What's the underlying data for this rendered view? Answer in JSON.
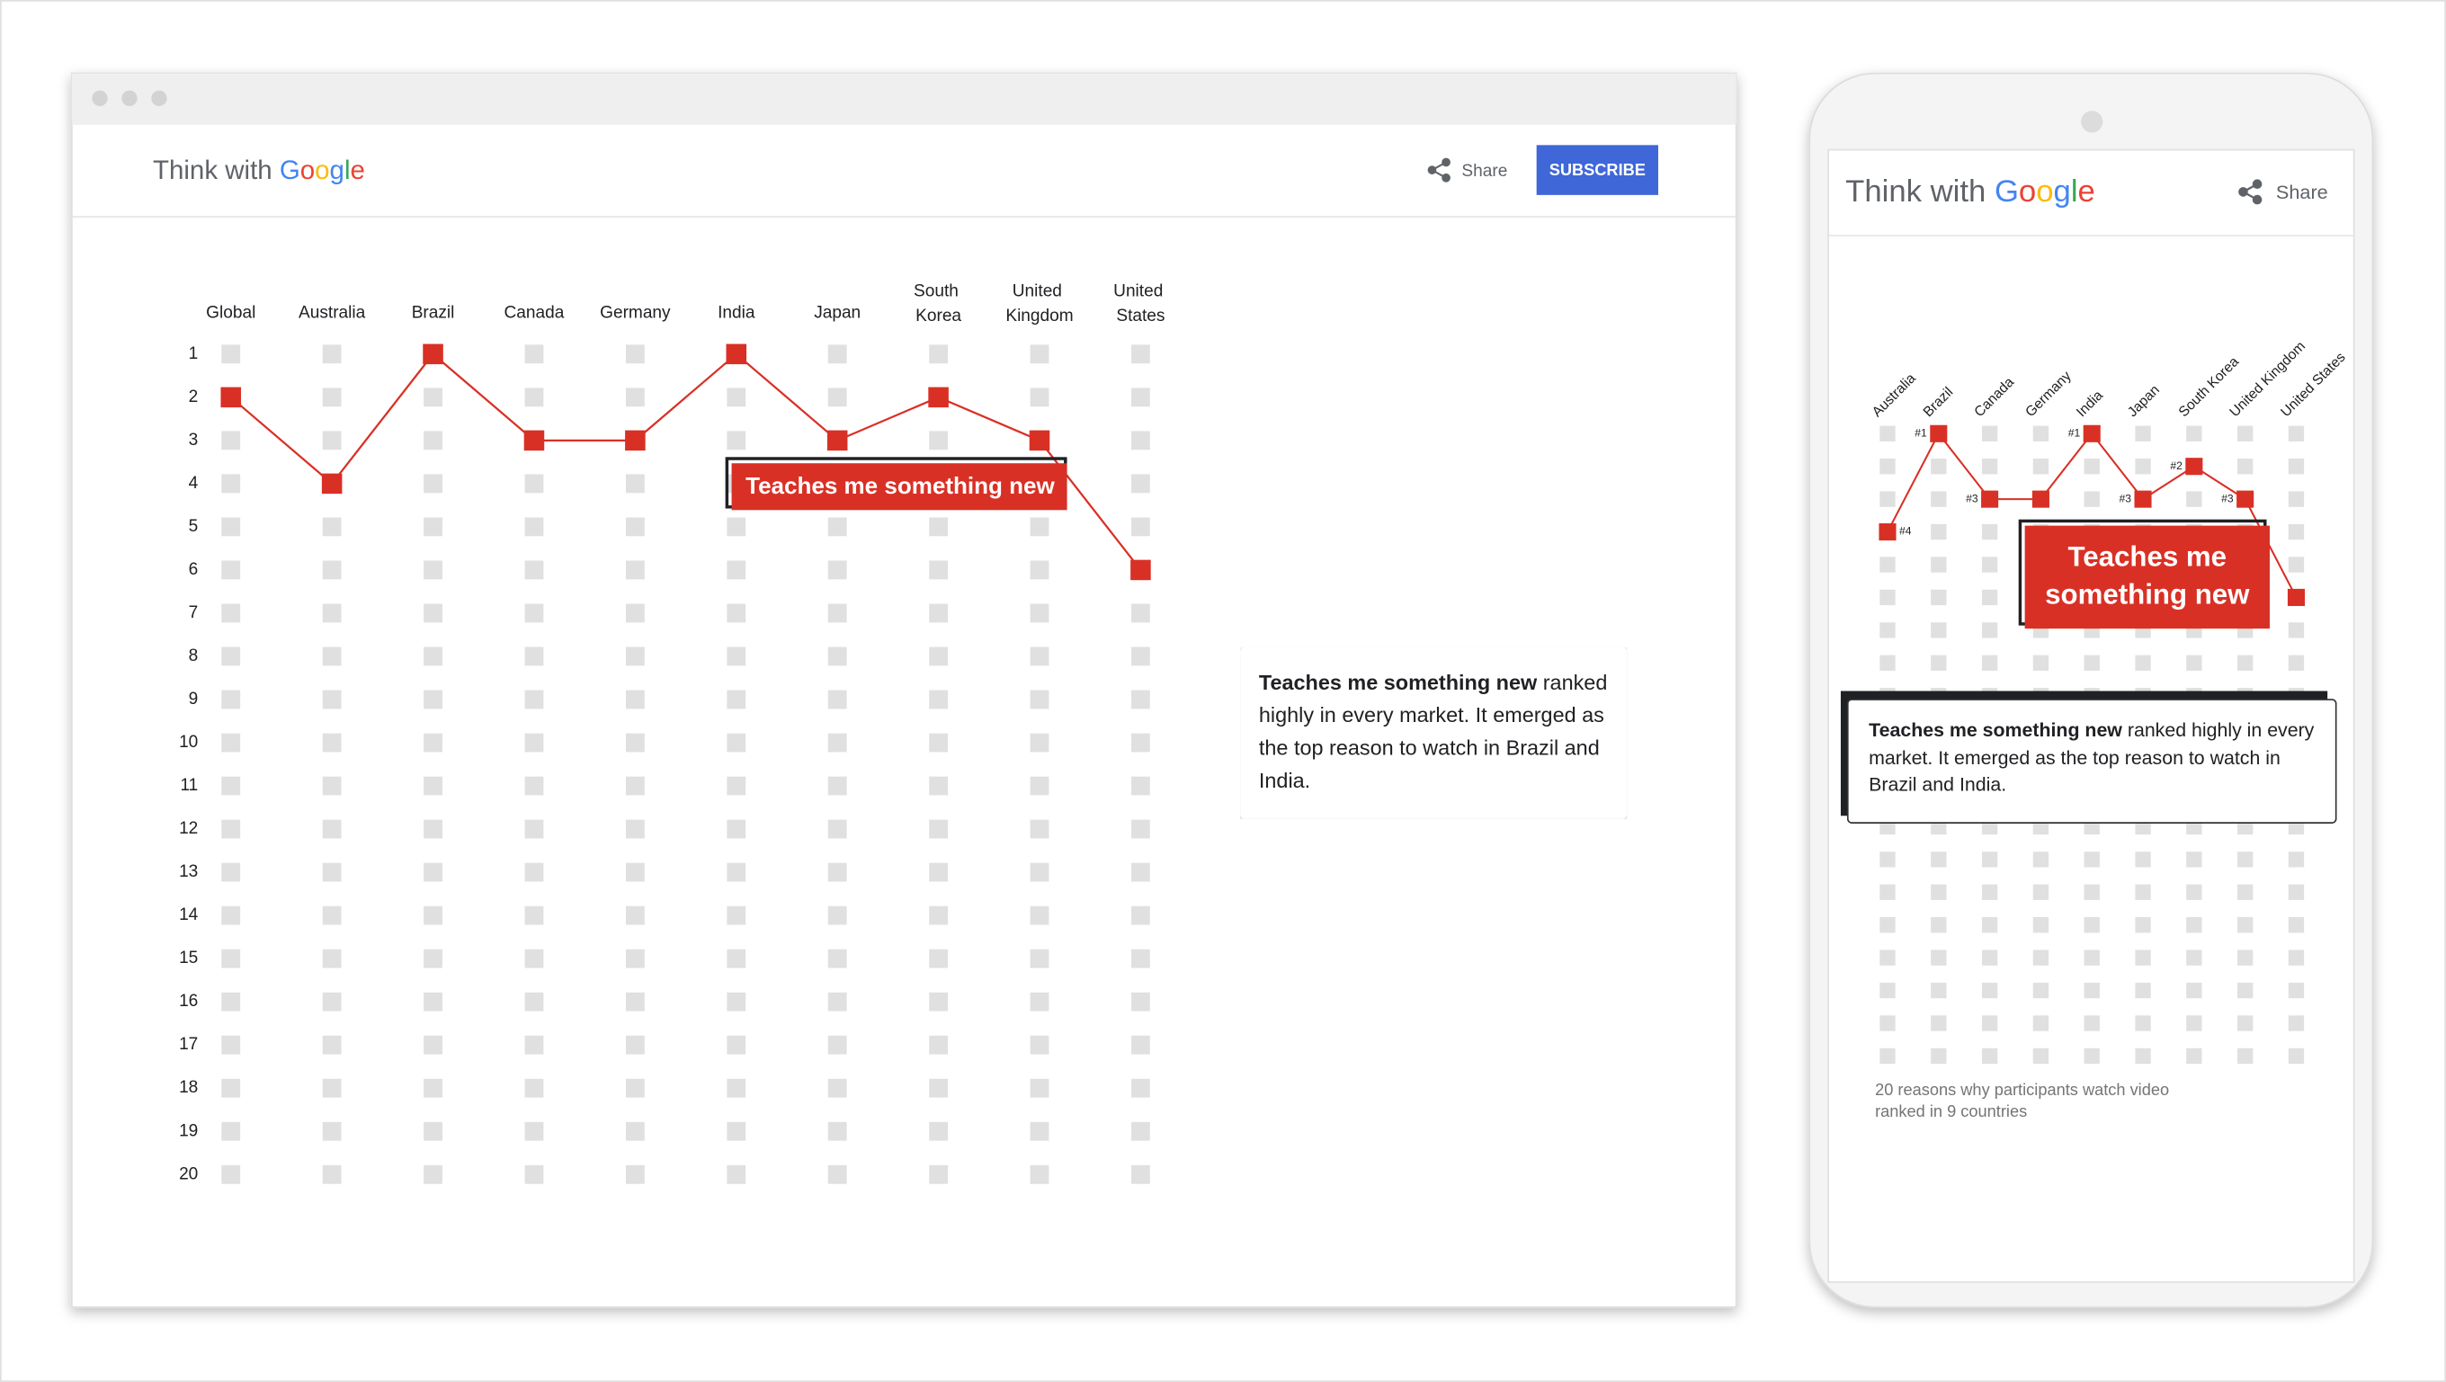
{
  "desktop": {
    "logo": {
      "prefix": "Think with",
      "name": "Google"
    },
    "share": "Share",
    "subscribe": "SUBSCRIBE",
    "annotation": {
      "bold": "Teaches me something new",
      "rest": "ranked highly in every market. It emerged as the top reason to watch in Brazil and India."
    }
  },
  "mobile": {
    "logo": {
      "prefix": "Think with",
      "name": "Google"
    },
    "share": "Share",
    "annotation": {
      "bold": "Teaches me something new",
      "rest": "ranked highly in every market. It emerged as the top reason to watch in Brazil and India."
    }
  },
  "chart_data": [
    {
      "type": "line",
      "categories": [
        "Global",
        "Australia",
        "Brazil",
        "Canada",
        "Germany",
        "India",
        "Japan",
        "South Korea",
        "United Kingdom",
        "United States"
      ],
      "series": [
        {
          "name": "Teaches me something new",
          "color": "#d93025",
          "values": [
            2,
            4,
            1,
            3,
            3,
            1,
            3,
            2,
            3,
            6
          ]
        }
      ],
      "ylim": [
        1,
        20
      ],
      "yticks": [
        1,
        2,
        3,
        4,
        5,
        6,
        7,
        8,
        9,
        10,
        11,
        12,
        13,
        14,
        15,
        16,
        17,
        18,
        19,
        20
      ],
      "y_inverted": true,
      "tick_labels": true,
      "grid_color": "#e0e0e0"
    },
    {
      "type": "line",
      "categories": [
        "Australia",
        "Brazil",
        "Canada",
        "Germany",
        "India",
        "Japan",
        "South Korea",
        "United Kingdom",
        "United States"
      ],
      "series": [
        {
          "name": "Teaches me something new",
          "color": "#d93025",
          "values": [
            4,
            1,
            3,
            3,
            1,
            3,
            2,
            3,
            6
          ],
          "value_labels": [
            "#4",
            "#1",
            "#3",
            null,
            "#1",
            "#3",
            "#2",
            "#3",
            null
          ]
        }
      ],
      "ylim": [
        1,
        20
      ],
      "yticks": [
        1,
        2,
        3,
        4,
        5,
        6,
        7,
        8,
        9,
        10,
        11,
        12,
        13,
        14,
        15,
        16,
        17,
        18,
        19,
        20
      ],
      "y_inverted": true,
      "tick_labels": false,
      "grid_color": "#e0e0e0",
      "caption": "20 reasons why participants watch video ranked in 9 countries"
    }
  ]
}
